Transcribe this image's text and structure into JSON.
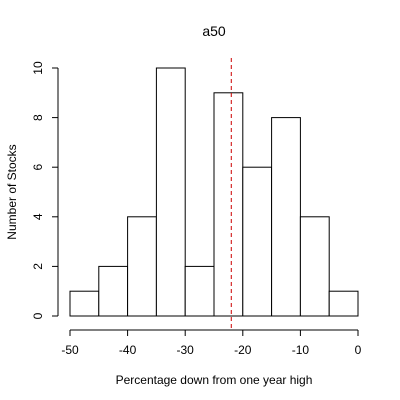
{
  "chart_data": {
    "type": "bar",
    "title": "a50",
    "xlabel": "Percentage down from one year high",
    "ylabel": "Number of Stocks",
    "bins": [
      {
        "x0": -50,
        "x1": -45,
        "count": 1
      },
      {
        "x0": -45,
        "x1": -40,
        "count": 2
      },
      {
        "x0": -40,
        "x1": -35,
        "count": 4
      },
      {
        "x0": -35,
        "x1": -30,
        "count": 10
      },
      {
        "x0": -30,
        "x1": -25,
        "count": 2
      },
      {
        "x0": -25,
        "x1": -20,
        "count": 9
      },
      {
        "x0": -20,
        "x1": -15,
        "count": 6
      },
      {
        "x0": -15,
        "x1": -10,
        "count": 8
      },
      {
        "x0": -10,
        "x1": -5,
        "count": 4
      },
      {
        "x0": -5,
        "x1": 0,
        "count": 1
      }
    ],
    "xlim": [
      -50,
      0
    ],
    "ylim": [
      0,
      10
    ],
    "x_ticks": [
      -50,
      -40,
      -30,
      -20,
      -10,
      0
    ],
    "y_ticks": [
      0,
      2,
      4,
      6,
      8,
      10
    ],
    "reference_line": {
      "x": -22,
      "color": "#cc0000",
      "style": "dashed"
    },
    "grid": false,
    "bar_fill": "#ffffff",
    "bar_stroke": "#000000"
  }
}
